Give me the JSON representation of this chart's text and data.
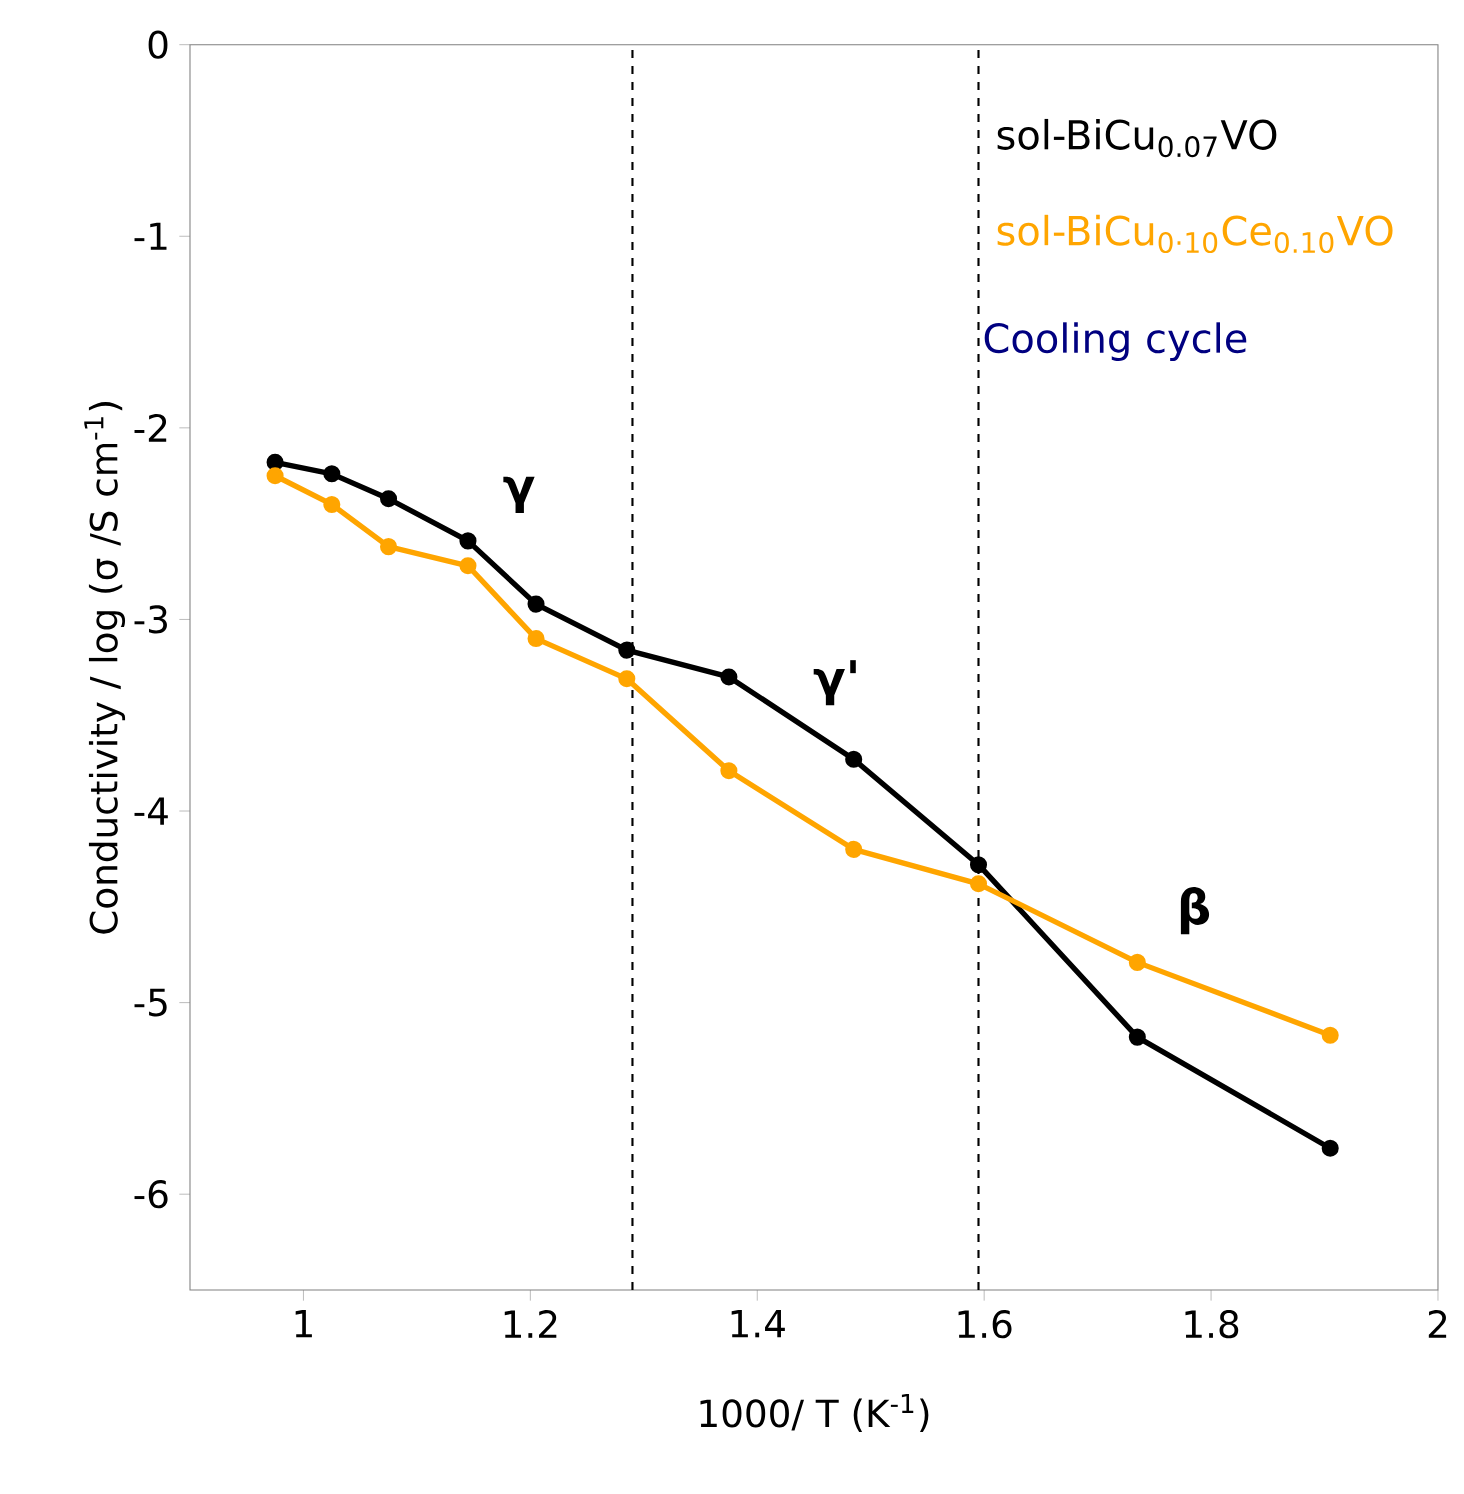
{
  "chart_data": {
    "type": "line",
    "xlabel": "1000/ T (K$^{-1}$)",
    "ylabel": "Conductivity / log (σ /S cm$^{-1}$)",
    "x": [
      0.975,
      1.025,
      1.075,
      1.145,
      1.205,
      1.285,
      1.375,
      1.485,
      1.595,
      1.735,
      1.905
    ],
    "series": [
      {
        "name": "sol-BiCu$_{0.07}$VO",
        "color": "#000000",
        "values": [
          -2.18,
          -2.24,
          -2.37,
          -2.59,
          -2.92,
          -3.16,
          -3.3,
          -3.73,
          -4.28,
          -5.18,
          -5.76
        ]
      },
      {
        "name": "sol-BiCu$_{0·10}$Ce$_{0.10}$VO",
        "color": "#ffa500",
        "values": [
          -2.25,
          -2.4,
          -2.62,
          -2.72,
          -3.1,
          -3.31,
          -3.79,
          -4.2,
          -4.38,
          -4.79,
          -5.17
        ]
      }
    ],
    "xlim": [
      0.9,
      2
    ],
    "ylim": [
      -6.5,
      0
    ],
    "xticks": [
      1,
      1.2,
      1.4,
      1.6,
      1.8,
      2
    ],
    "yticks": [
      0,
      -1,
      -2,
      -3,
      -4,
      -5,
      -6
    ],
    "ref_lines": [
      {
        "axis": "x",
        "value": 1.29,
        "color": "#000000",
        "line_style": "dashed"
      },
      {
        "axis": "x",
        "value": 1.595,
        "color": "#000000",
        "line_style": "dashed"
      }
    ],
    "annotations": [
      "γ",
      "γ'",
      "β",
      "Cooling cycle"
    ],
    "legend": "top right",
    "grid": false,
    "marker": "circle",
    "line_style": "solid"
  }
}
